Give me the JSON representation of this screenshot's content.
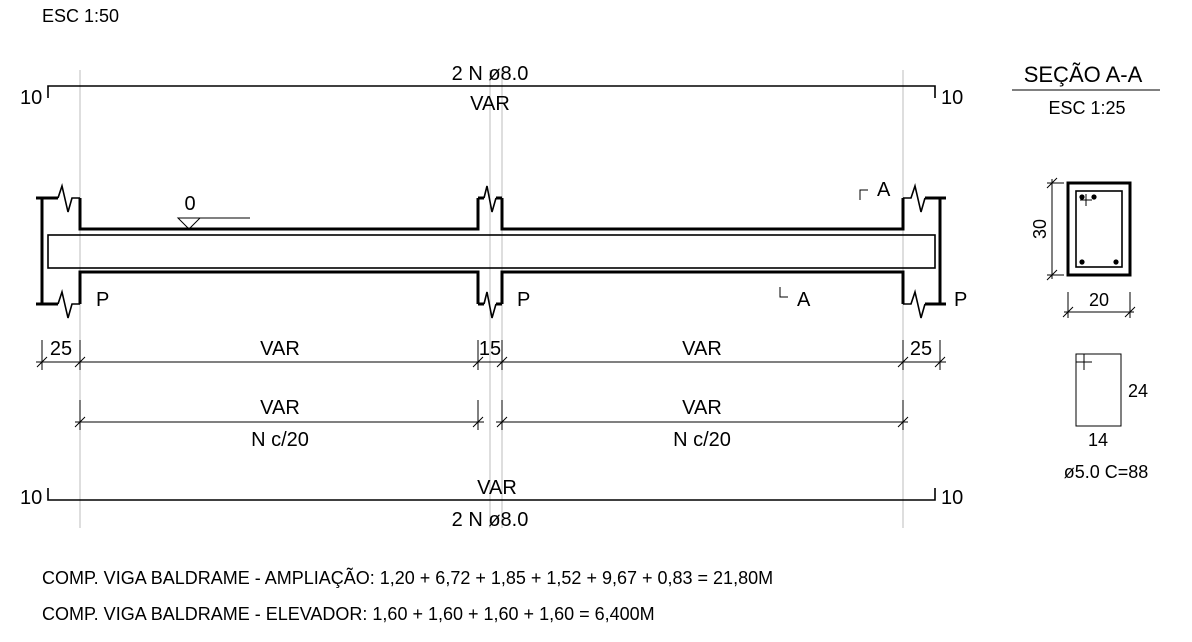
{
  "header": {
    "scale": "ESC 1:50"
  },
  "top_bar": {
    "left_hook": "10",
    "right_hook": "10",
    "spec": "2 N ø8.0",
    "length": "VAR"
  },
  "beam": {
    "level": "0",
    "section_cut": "A",
    "section_cut_bottom": "A"
  },
  "pillars": {
    "left": "P",
    "middle": "P",
    "right": "P"
  },
  "dims_row1": {
    "left_end": "25",
    "span1": "VAR",
    "mid": "15",
    "span2": "VAR",
    "right_end": "25"
  },
  "dims_row2": {
    "span1_len": "VAR",
    "span1_stirrups": "N c/20",
    "span2_len": "VAR",
    "span2_stirrups": "N c/20"
  },
  "bottom_bar": {
    "left_hook": "10",
    "right_hook": "10",
    "length": "VAR",
    "spec": "2 N ø8.0"
  },
  "section": {
    "title": "SEÇÃO A-A",
    "scale": "ESC 1:25",
    "height": "30",
    "width": "20"
  },
  "stirrup": {
    "height": "24",
    "width": "14",
    "spec": "ø5.0 C=88"
  },
  "notes": {
    "line1": "COMP. VIGA BALDRAME - AMPLIAÇÃO: 1,20 + 6,72 + 1,85 + 1,52 + 9,67 + 0,83 = 21,80M",
    "line2": "COMP. VIGA BALDRAME - ELEVADOR: 1,60 + 1,60 + 1,60 + 1,60 = 6,400M"
  }
}
